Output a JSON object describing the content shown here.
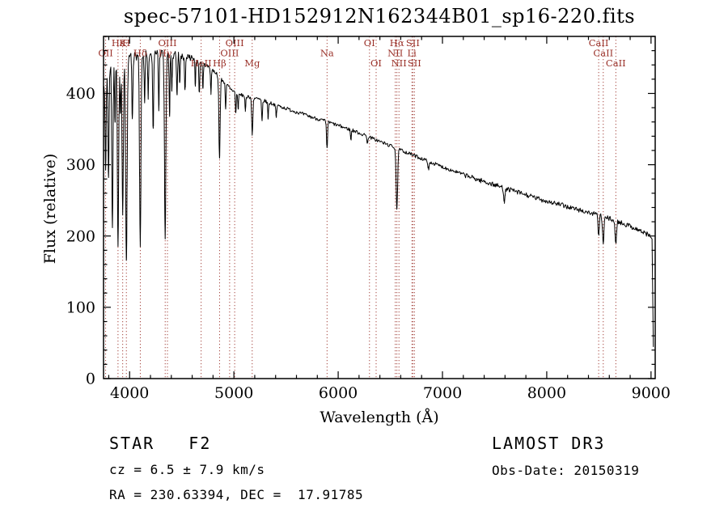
{
  "title": "spec-57101-HD152912N162344B01_sp16-220.fits",
  "footer": {
    "class_label": "STAR   F2",
    "survey": "LAMOST DR3",
    "cz": "cz = 6.5 ± 7.9 km/s",
    "obs_date": "Obs-Date: 20150319",
    "coords": "RA = 230.63394, DEC =  17.91785"
  },
  "colors": {
    "background": "#ffffff",
    "spectrum": "#000000",
    "axis": "#000000",
    "line_marker": "#9a3028",
    "line_label": "#9a3028"
  },
  "chart_data": {
    "type": "line",
    "title": "spec-57101-HD152912N162344B01_sp16-220.fits",
    "xlabel": "Wavelength (Å)",
    "ylabel": "Flux (relative)",
    "xlim": [
      3750,
      9040
    ],
    "ylim": [
      0,
      480
    ],
    "xticks": [
      4000,
      5000,
      6000,
      7000,
      8000,
      9000
    ],
    "yticks": [
      0,
      100,
      200,
      300,
      400
    ],
    "x_minor_step": 200,
    "y_minor_step": 20,
    "grid": false,
    "continuum_points": [
      [
        3750,
        415
      ],
      [
        3790,
        432
      ],
      [
        3850,
        444
      ],
      [
        3950,
        450
      ],
      [
        4050,
        452
      ],
      [
        4150,
        455
      ],
      [
        4250,
        457
      ],
      [
        4350,
        456
      ],
      [
        4450,
        453
      ],
      [
        4550,
        450
      ],
      [
        4650,
        446
      ],
      [
        4750,
        438
      ],
      [
        4820,
        430
      ],
      [
        4900,
        417
      ],
      [
        4980,
        405
      ],
      [
        5060,
        398
      ],
      [
        5160,
        395
      ],
      [
        5260,
        391
      ],
      [
        5360,
        386
      ],
      [
        5460,
        381
      ],
      [
        5560,
        376
      ],
      [
        5660,
        371
      ],
      [
        5760,
        366
      ],
      [
        5860,
        362
      ],
      [
        5960,
        357
      ],
      [
        6060,
        352
      ],
      [
        6160,
        347
      ],
      [
        6260,
        341
      ],
      [
        6360,
        335
      ],
      [
        6460,
        329
      ],
      [
        6560,
        323
      ],
      [
        6660,
        317
      ],
      [
        6760,
        311
      ],
      [
        6860,
        305
      ],
      [
        7000,
        297
      ],
      [
        7150,
        289
      ],
      [
        7300,
        281
      ],
      [
        7450,
        274
      ],
      [
        7600,
        267
      ],
      [
        7750,
        260
      ],
      [
        7900,
        253
      ],
      [
        8050,
        247
      ],
      [
        8200,
        241
      ],
      [
        8350,
        235
      ],
      [
        8500,
        229
      ],
      [
        8650,
        222
      ],
      [
        8800,
        214
      ],
      [
        8900,
        207
      ],
      [
        8970,
        202
      ],
      [
        9005,
        199
      ],
      [
        9012,
        195
      ],
      [
        9018,
        80
      ],
      [
        9023,
        32
      ]
    ],
    "absorption_line_format": "[wavelength_A, depth_flux, sigma_A]",
    "absorption_lines": [
      [
        3770,
        130,
        5
      ],
      [
        3798,
        150,
        5
      ],
      [
        3835,
        230,
        5.5
      ],
      [
        3860,
        90,
        4
      ],
      [
        3889,
        260,
        6
      ],
      [
        3912,
        80,
        4
      ],
      [
        3934,
        220,
        6
      ],
      [
        3969,
        290,
        7
      ],
      [
        4026,
        90,
        4.5
      ],
      [
        4102,
        270,
        6.5
      ],
      [
        4144,
        70,
        4
      ],
      [
        4178,
        60,
        4
      ],
      [
        4226,
        110,
        4.5
      ],
      [
        4280,
        80,
        4
      ],
      [
        4341,
        260,
        6.5
      ],
      [
        4383,
        90,
        4
      ],
      [
        4405,
        50,
        3.5
      ],
      [
        4455,
        60,
        4
      ],
      [
        4481,
        40,
        3.5
      ],
      [
        4531,
        50,
        4
      ],
      [
        4630,
        35,
        3.5
      ],
      [
        4668,
        45,
        4
      ],
      [
        4703,
        35,
        3.5
      ],
      [
        4780,
        35,
        3.5
      ],
      [
        4862,
        115,
        6
      ],
      [
        4921,
        35,
        4
      ],
      [
        5018,
        30,
        4
      ],
      [
        5041,
        22,
        3.5
      ],
      [
        5110,
        22,
        3.5
      ],
      [
        5176,
        52,
        5.5
      ],
      [
        5270,
        30,
        4
      ],
      [
        5328,
        22,
        3.5
      ],
      [
        5406,
        18,
        3.5
      ],
      [
        5893,
        38,
        5
      ],
      [
        6122,
        14,
        4
      ],
      [
        6280,
        10,
        4
      ],
      [
        6563,
        85,
        7
      ],
      [
        6867,
        12,
        5
      ],
      [
        7594,
        18,
        7
      ],
      [
        8498,
        28,
        6
      ],
      [
        8542,
        38,
        6.5
      ],
      [
        8662,
        32,
        6.5
      ]
    ],
    "noise_bands": [
      {
        "upto": 4600,
        "amp": 6
      },
      {
        "upto": 7200,
        "amp": 2.5
      },
      {
        "upto": 9100,
        "amp": 3.5
      }
    ],
    "spectral_line_markers": [
      {
        "label": "OII",
        "wavelength": 3770,
        "row": 1
      },
      {
        "label": "Hε",
        "wavelength": 3889,
        "row": 0
      },
      {
        "label": "K",
        "wavelength": 3934,
        "row": 0
      },
      {
        "label": "H",
        "wavelength": 3969,
        "row": 0
      },
      {
        "label": "Hδ",
        "wavelength": 4102,
        "row": 1
      },
      {
        "label": "Hγ",
        "wavelength": 4341,
        "row": 1
      },
      {
        "label": "OIII",
        "wavelength": 4363,
        "row": 0
      },
      {
        "label": "HeII",
        "wavelength": 4686,
        "row": 2
      },
      {
        "label": "Hβ",
        "wavelength": 4862,
        "row": 2
      },
      {
        "label": "OIII",
        "wavelength": 4959,
        "row": 1
      },
      {
        "label": "OIII",
        "wavelength": 5007,
        "row": 0
      },
      {
        "label": "Mg",
        "wavelength": 5176,
        "row": 2
      },
      {
        "label": "Na",
        "wavelength": 5893,
        "row": 1
      },
      {
        "label": "OI",
        "wavelength": 6300,
        "row": 0
      },
      {
        "label": "OI",
        "wavelength": 6364,
        "row": 2
      },
      {
        "label": "NII",
        "wavelength": 6548,
        "row": 1
      },
      {
        "label": "Hα",
        "wavelength": 6563,
        "row": 0
      },
      {
        "label": "NII",
        "wavelength": 6583,
        "row": 2
      },
      {
        "label": "Li",
        "wavelength": 6707,
        "row": 1
      },
      {
        "label": "SII",
        "wavelength": 6716,
        "row": 0
      },
      {
        "label": "SII",
        "wavelength": 6731,
        "row": 2
      },
      {
        "label": "CaII",
        "wavelength": 8498,
        "row": 0
      },
      {
        "label": "CaII",
        "wavelength": 8542,
        "row": 1
      },
      {
        "label": "CaII",
        "wavelength": 8662,
        "row": 2
      }
    ]
  }
}
